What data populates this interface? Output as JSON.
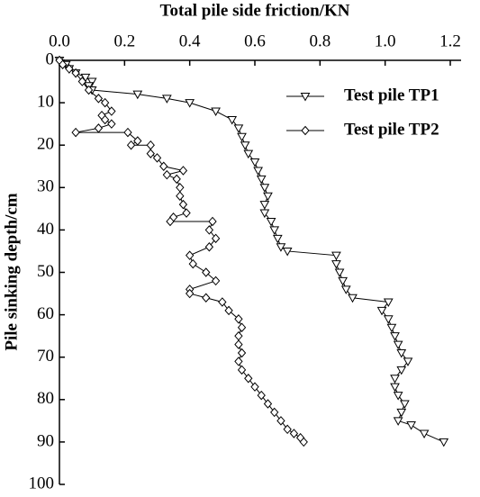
{
  "chart_data": {
    "type": "line",
    "title": "Total pile side friction/KN",
    "y_label": "Pile sinking depth/cm",
    "xlim": [
      0,
      1.2
    ],
    "xticks": [
      {
        "value": 0,
        "label": "0.0"
      },
      0.2,
      0.4,
      0.6,
      0.8,
      {
        "value": 1,
        "label": "1.0"
      },
      1.2
    ],
    "ylim": [
      0,
      100
    ],
    "yticks": [
      0,
      10,
      20,
      30,
      40,
      50,
      60,
      70,
      80,
      90,
      100
    ],
    "y_inverted": true,
    "legend": "upper right",
    "series": [
      {
        "name": "Test pile TP1",
        "color": "#000000",
        "marker": "triangle-down",
        "x": [
          0,
          0.02,
          0.03,
          0.05,
          0.08,
          0.1,
          0.09,
          0.1,
          0.24,
          0.33,
          0.4,
          0.48,
          0.53,
          0.55,
          0.56,
          0.57,
          0.58,
          0.6,
          0.61,
          0.62,
          0.63,
          0.64,
          0.63,
          0.63,
          0.65,
          0.66,
          0.67,
          0.68,
          0.7,
          0.85,
          0.85,
          0.86,
          0.87,
          0.88,
          0.9,
          1.01,
          0.99,
          1.01,
          1.02,
          1.03,
          1.04,
          1.05,
          1.07,
          1.05,
          1.03,
          1.03,
          1.04,
          1.06,
          1.05,
          1.04,
          1.08,
          1.12,
          1.18
        ],
        "values": [
          0,
          1,
          2,
          3,
          4,
          5,
          6,
          7,
          8,
          9,
          10,
          12,
          14,
          16,
          18,
          20,
          22,
          24,
          26,
          28,
          30,
          32,
          34,
          36,
          38,
          40,
          42,
          44,
          45,
          46,
          48,
          50,
          52,
          54,
          56,
          57,
          59,
          61,
          63,
          65,
          67,
          69,
          71,
          73,
          75,
          77,
          79,
          81,
          83,
          85,
          86,
          88,
          90
        ]
      },
      {
        "name": "Test pile TP2",
        "color": "#000000",
        "marker": "diamond",
        "x": [
          0,
          0.01,
          0.03,
          0.05,
          0.07,
          0.09,
          0.12,
          0.14,
          0.16,
          0.13,
          0.14,
          0.16,
          0.12,
          0.05,
          0.21,
          0.24,
          0.22,
          0.28,
          0.28,
          0.3,
          0.32,
          0.38,
          0.33,
          0.36,
          0.37,
          0.37,
          0.38,
          0.39,
          0.35,
          0.34,
          0.47,
          0.46,
          0.48,
          0.46,
          0.4,
          0.41,
          0.45,
          0.48,
          0.4,
          0.4,
          0.45,
          0.5,
          0.52,
          0.55,
          0.56,
          0.55,
          0.55,
          0.56,
          0.55,
          0.56,
          0.58,
          0.6,
          0.62,
          0.64,
          0.66,
          0.68,
          0.7,
          0.72,
          0.74,
          0.75
        ],
        "values": [
          0,
          1,
          2,
          3,
          5,
          7,
          9,
          10,
          12,
          13,
          14,
          15,
          16,
          17,
          17,
          19,
          20,
          20,
          22,
          23,
          25,
          26,
          27,
          28,
          30,
          32,
          34,
          36,
          37,
          38,
          38,
          40,
          42,
          44,
          46,
          48,
          50,
          52,
          54,
          55,
          56,
          57,
          59,
          61,
          63,
          65,
          67,
          69,
          71,
          73,
          75,
          77,
          79,
          81,
          83,
          85,
          87,
          88,
          89,
          90
        ]
      }
    ]
  }
}
